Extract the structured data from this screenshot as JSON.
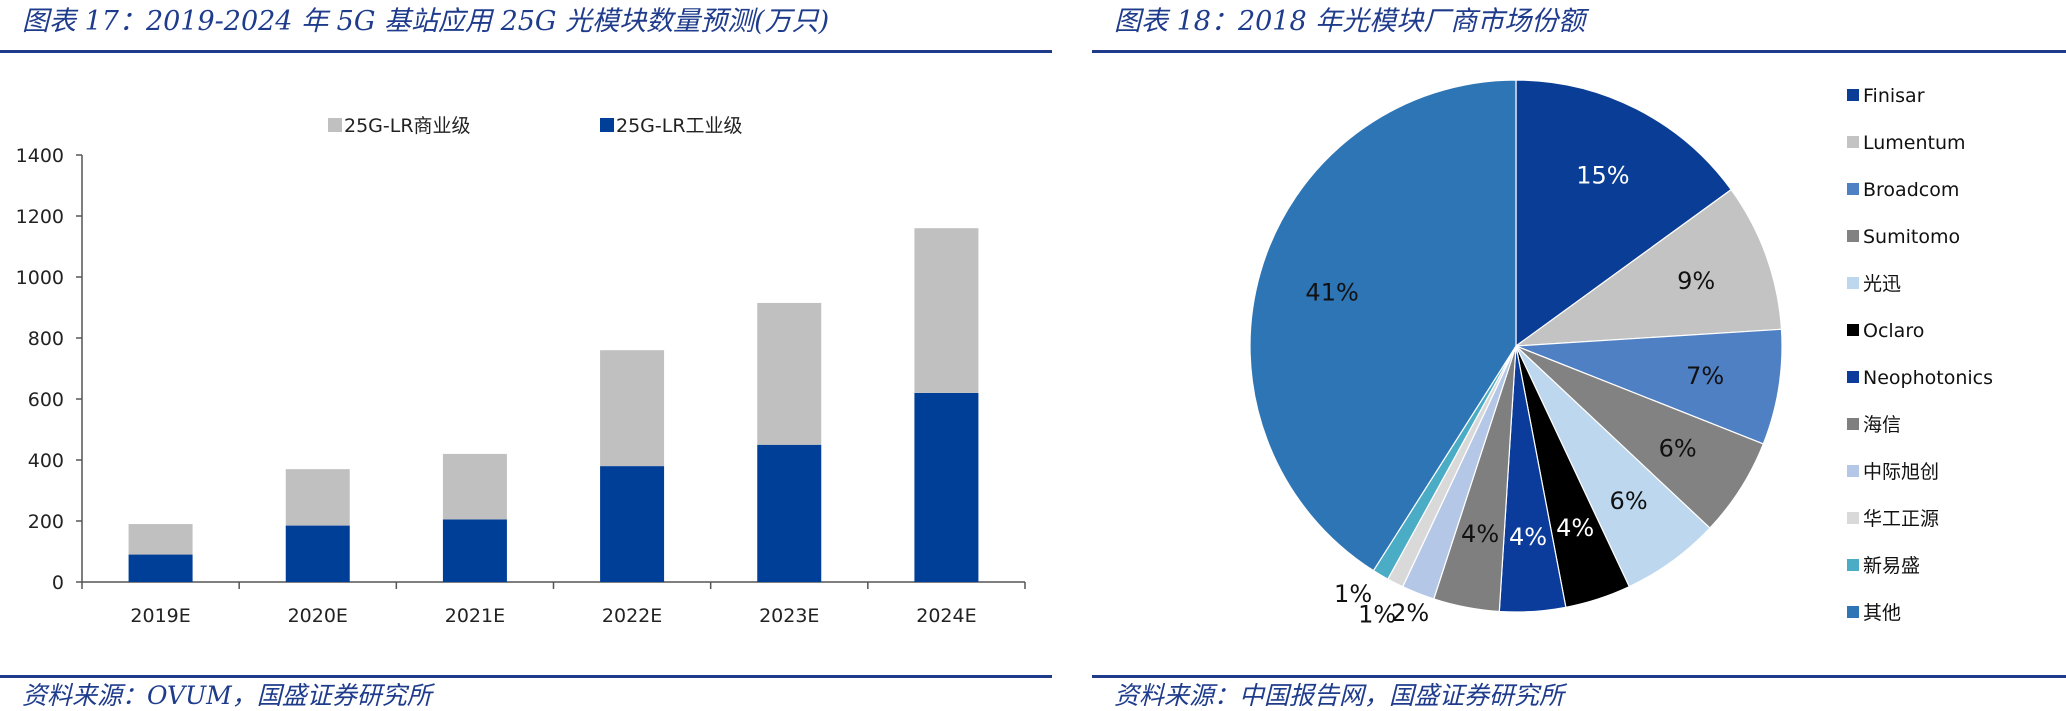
{
  "left": {
    "title": "图表 17：2019-2024 年 5G 基站应用 25G 光模块数量预测(万只)",
    "source": "资料来源：OVUM，国盛证券研究所"
  },
  "right": {
    "title": "图表 18：2018 年光模块厂商市场份额",
    "source": "资料来源：中国报告网，国盛证券研究所"
  },
  "chart_data": [
    {
      "type": "bar",
      "stacked": true,
      "title": "",
      "xlabel": "",
      "ylabel": "",
      "categories": [
        "2019E",
        "2020E",
        "2021E",
        "2022E",
        "2023E",
        "2024E"
      ],
      "ylim": [
        0,
        1400
      ],
      "yticks": [
        0,
        200,
        400,
        600,
        800,
        1000,
        1200,
        1400
      ],
      "grid": false,
      "legend_position": "top",
      "series": [
        {
          "name": "25G-LR工业级",
          "color": "#003f98",
          "values": [
            90,
            185,
            205,
            380,
            450,
            620
          ]
        },
        {
          "name": "25G-LR商业级",
          "color": "#c0c0c0",
          "values": [
            100,
            185,
            215,
            380,
            465,
            540
          ]
        }
      ]
    },
    {
      "type": "pie",
      "title": "",
      "legend_position": "right",
      "slices": [
        {
          "name": "Finisar",
          "value": 15,
          "label": "15%",
          "color": "#0a3d96",
          "label_color": "#ffffff"
        },
        {
          "name": "Lumentum",
          "value": 9,
          "label": "9%",
          "color": "#c3c3c3",
          "label_color": "#111111"
        },
        {
          "name": "Broadcom",
          "value": 7,
          "label": "7%",
          "color": "#4f80c4",
          "label_color": "#111111"
        },
        {
          "name": "Sumitomo",
          "value": 6,
          "label": "6%",
          "color": "#828282",
          "label_color": "#111111"
        },
        {
          "name": "光迅",
          "value": 6,
          "label": "6%",
          "color": "#bdd7ee",
          "label_color": "#111111"
        },
        {
          "name": "Oclaro",
          "value": 4,
          "label": "4%",
          "color": "#000000",
          "label_color": "#ffffff"
        },
        {
          "name": "Neophotonics",
          "value": 4,
          "label": "4%",
          "color": "#0b3c9c",
          "label_color": "#ffffff"
        },
        {
          "name": "海信",
          "value": 4,
          "label": "4%",
          "color": "#7f7f7f",
          "label_color": "#111111"
        },
        {
          "name": "中际旭创",
          "value": 2,
          "label": "2%",
          "color": "#b4c7e7",
          "label_color": "#111111"
        },
        {
          "name": "华工正源",
          "value": 1,
          "label": "1%",
          "color": "#d9d9d9",
          "label_color": "#111111"
        },
        {
          "name": "新易盛",
          "value": 1,
          "label": "1%",
          "color": "#4bacc6",
          "label_color": "#111111"
        },
        {
          "name": "其他",
          "value": 41,
          "label": "41%",
          "color": "#2e75b6",
          "label_color": "#111111"
        }
      ]
    }
  ]
}
